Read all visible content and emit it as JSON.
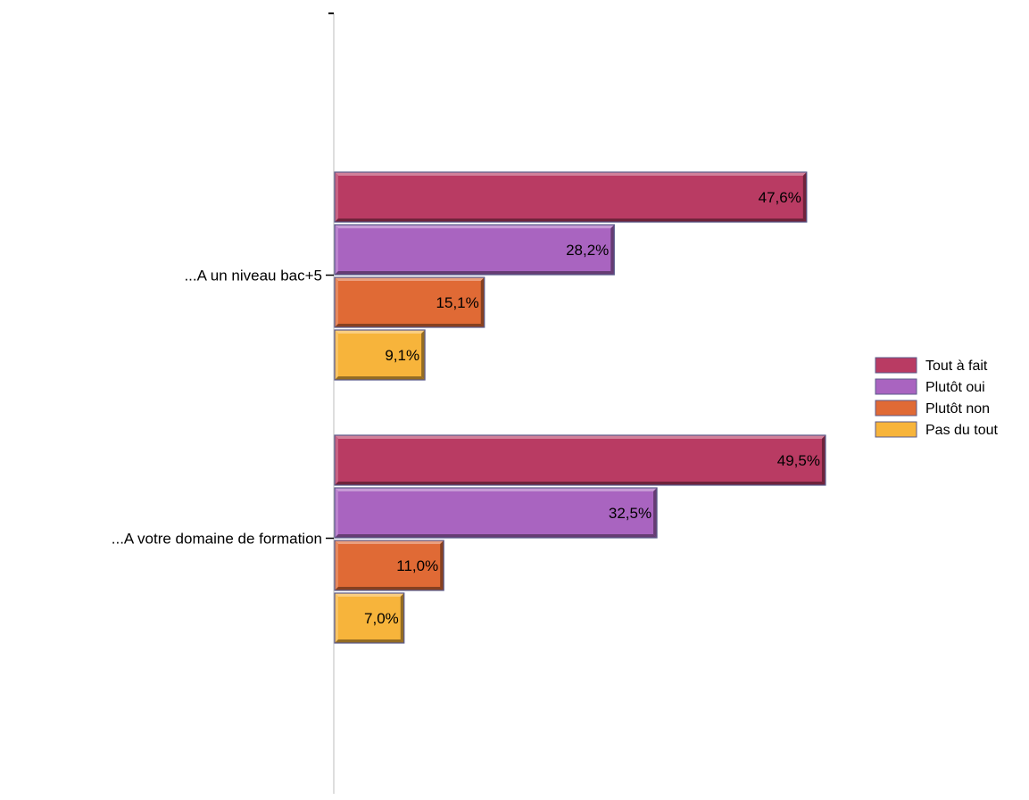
{
  "chart_data": {
    "type": "bar",
    "orientation": "horizontal",
    "categories": [
      "...A un niveau bac+5",
      "...A votre domaine de formation"
    ],
    "series": [
      {
        "name": "Tout à fait",
        "values": [
          47.6,
          49.5
        ],
        "labels": [
          "47,6%",
          "49,5%"
        ],
        "color": "#b93b63"
      },
      {
        "name": "Plutôt oui",
        "values": [
          28.2,
          32.5
        ],
        "labels": [
          "28,2%",
          "32,5%"
        ],
        "color": "#a964c0"
      },
      {
        "name": "Plutôt non",
        "values": [
          15.1,
          11.0
        ],
        "labels": [
          "15,1%",
          "11,0%"
        ],
        "color": "#e06a35"
      },
      {
        "name": "Pas du tout",
        "values": [
          9.1,
          7.0
        ],
        "labels": [
          "9,1%",
          "7,0%"
        ],
        "color": "#f7b43b"
      }
    ],
    "xlim": [
      0,
      100
    ],
    "legend_position": "right",
    "grid": false,
    "bar_style": "bevel-3d"
  }
}
